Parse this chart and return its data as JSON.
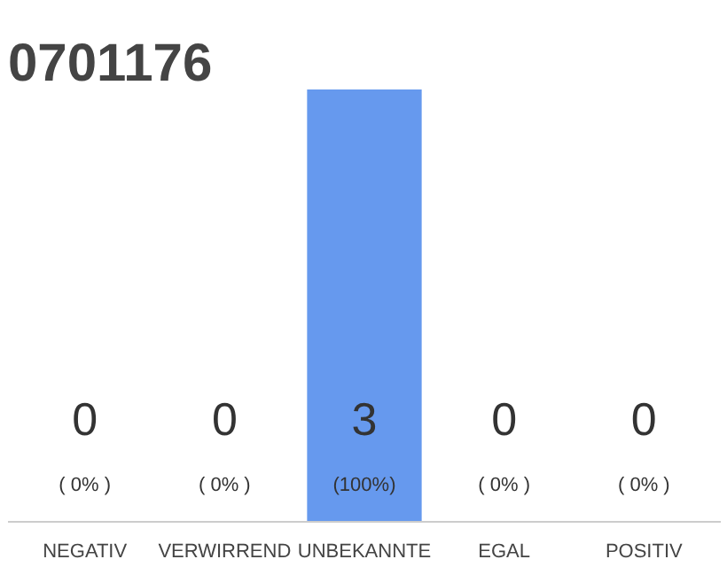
{
  "chart_data": {
    "type": "bar",
    "title": "0701176",
    "categories": [
      "NEGATIV",
      "VERWIRREND",
      "UNBEKANNTE",
      "EGAL",
      "POSITIV"
    ],
    "values": [
      0,
      0,
      3,
      0,
      0
    ],
    "color": "#6699ee",
    "data_labels": true,
    "annotations": [
      "( 0% )",
      "( 0% )",
      "(100%)",
      "( 0% )",
      "( 0% )"
    ],
    "tick_labels": "x",
    "grid": false
  }
}
